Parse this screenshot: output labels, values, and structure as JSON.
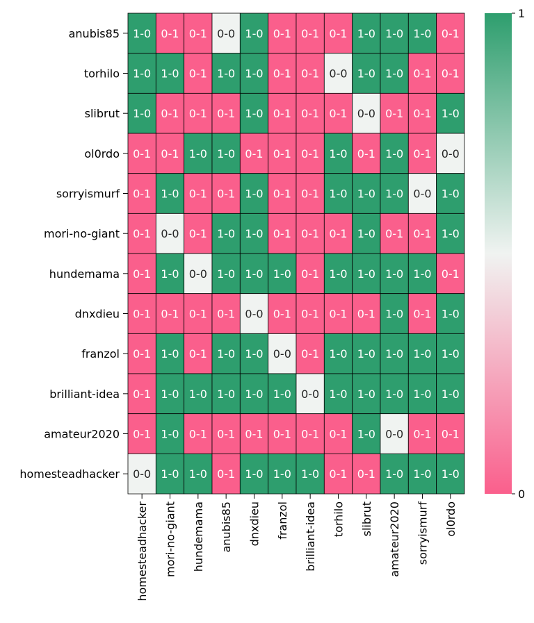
{
  "chart_data": {
    "type": "heatmap",
    "title": "",
    "xlabel": "",
    "ylabel": "",
    "row_labels": [
      "anubis85",
      "torhilo",
      "slibrut",
      "ol0rdo",
      "sorryismurf",
      "mori-no-giant",
      "hundemama",
      "dnxdieu",
      "franzol",
      "brilliant-idea",
      "amateur2020",
      "homesteadhacker"
    ],
    "col_labels": [
      "homesteadhacker",
      "mori-no-giant",
      "hundemama",
      "anubis85",
      "dnxdieu",
      "franzol",
      "brilliant-idea",
      "torhilo",
      "slibrut",
      "amateur2020",
      "sorryismurf",
      "ol0rdo"
    ],
    "values": [
      [
        1,
        0,
        0,
        0.5,
        1,
        0,
        0,
        0,
        1,
        1,
        1,
        0
      ],
      [
        1,
        1,
        0,
        1,
        1,
        0,
        0,
        0.5,
        1,
        1,
        0,
        0
      ],
      [
        1,
        0,
        0,
        0,
        1,
        0,
        0,
        0,
        0.5,
        0,
        0,
        1
      ],
      [
        0,
        0,
        1,
        1,
        0,
        0,
        0,
        1,
        0,
        1,
        0,
        0.5
      ],
      [
        0,
        1,
        0,
        0,
        1,
        0,
        0,
        1,
        1,
        1,
        0.5,
        1
      ],
      [
        0,
        0.5,
        0,
        1,
        1,
        0,
        0,
        0,
        1,
        0,
        0,
        1
      ],
      [
        0,
        1,
        0.5,
        1,
        1,
        1,
        0,
        1,
        1,
        1,
        1,
        0
      ],
      [
        0,
        0,
        0,
        0,
        0.5,
        0,
        0,
        0,
        0,
        1,
        0,
        1
      ],
      [
        0,
        1,
        0,
        1,
        1,
        0.5,
        0,
        1,
        1,
        1,
        1,
        1
      ],
      [
        0,
        1,
        1,
        1,
        1,
        1,
        0.5,
        1,
        1,
        1,
        1,
        1
      ],
      [
        0,
        1,
        0,
        0,
        0,
        0,
        0,
        0,
        1,
        0.5,
        0,
        0
      ],
      [
        0.5,
        1,
        1,
        0,
        1,
        1,
        1,
        0,
        0,
        1,
        1,
        1
      ]
    ],
    "annotations": [
      [
        "1-0",
        "0-1",
        "0-1",
        "0-0",
        "1-0",
        "0-1",
        "0-1",
        "0-1",
        "1-0",
        "1-0",
        "1-0",
        "0-1"
      ],
      [
        "1-0",
        "1-0",
        "0-1",
        "1-0",
        "1-0",
        "0-1",
        "0-1",
        "0-0",
        "1-0",
        "1-0",
        "0-1",
        "0-1"
      ],
      [
        "1-0",
        "0-1",
        "0-1",
        "0-1",
        "1-0",
        "0-1",
        "0-1",
        "0-1",
        "0-0",
        "0-1",
        "0-1",
        "1-0"
      ],
      [
        "0-1",
        "0-1",
        "1-0",
        "1-0",
        "0-1",
        "0-1",
        "0-1",
        "1-0",
        "0-1",
        "1-0",
        "0-1",
        "0-0"
      ],
      [
        "0-1",
        "1-0",
        "0-1",
        "0-1",
        "1-0",
        "0-1",
        "0-1",
        "1-0",
        "1-0",
        "1-0",
        "0-0",
        "1-0"
      ],
      [
        "0-1",
        "0-0",
        "0-1",
        "1-0",
        "1-0",
        "0-1",
        "0-1",
        "0-1",
        "1-0",
        "0-1",
        "0-1",
        "1-0"
      ],
      [
        "0-1",
        "1-0",
        "0-0",
        "1-0",
        "1-0",
        "1-0",
        "0-1",
        "1-0",
        "1-0",
        "1-0",
        "1-0",
        "0-1"
      ],
      [
        "0-1",
        "0-1",
        "0-1",
        "0-1",
        "0-0",
        "0-1",
        "0-1",
        "0-1",
        "0-1",
        "1-0",
        "0-1",
        "1-0"
      ],
      [
        "0-1",
        "1-0",
        "0-1",
        "1-0",
        "1-0",
        "0-0",
        "0-1",
        "1-0",
        "1-0",
        "1-0",
        "1-0",
        "1-0"
      ],
      [
        "0-1",
        "1-0",
        "1-0",
        "1-0",
        "1-0",
        "1-0",
        "0-0",
        "1-0",
        "1-0",
        "1-0",
        "1-0",
        "1-0"
      ],
      [
        "0-1",
        "1-0",
        "0-1",
        "0-1",
        "0-1",
        "0-1",
        "0-1",
        "0-1",
        "1-0",
        "0-0",
        "0-1",
        "0-1"
      ],
      [
        "0-0",
        "1-0",
        "1-0",
        "0-1",
        "1-0",
        "1-0",
        "1-0",
        "0-1",
        "0-1",
        "1-0",
        "1-0",
        "1-0"
      ]
    ],
    "colorbar": {
      "min": 0,
      "max": 1,
      "tick_labels": [
        "0",
        "1"
      ]
    },
    "colors": {
      "low": "#fa5f8c",
      "mid": "#f0f3f1",
      "high": "#2e9e6e",
      "text_light": "#ffffff",
      "text_dark": "#262626"
    },
    "grid": false,
    "legend": "colorbar-right"
  }
}
